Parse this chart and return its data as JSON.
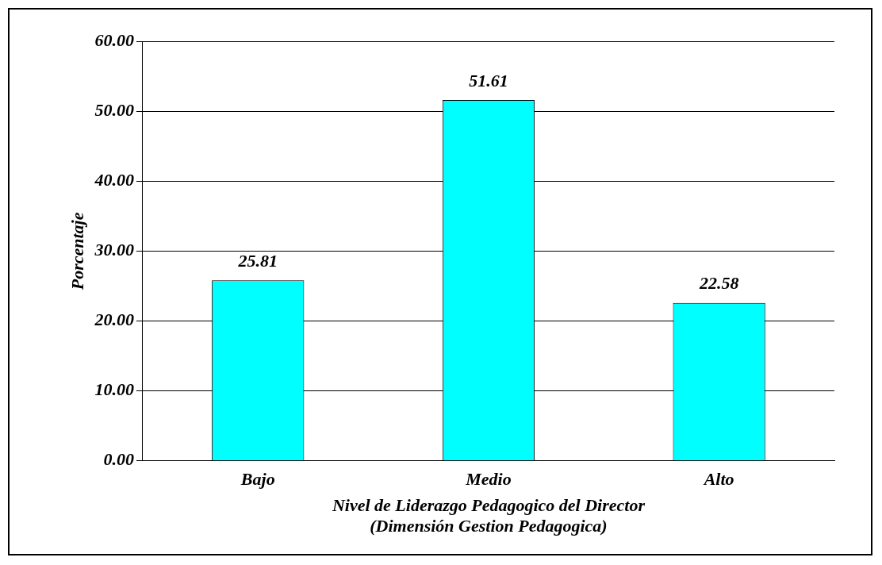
{
  "chart_data": {
    "type": "bar",
    "categories": [
      "Bajo",
      "Medio",
      "Alto"
    ],
    "values": [
      25.81,
      51.61,
      22.58
    ],
    "color": "#00ffff",
    "ylabel": "Porcentaje",
    "xlabel": "Nivel de Liderazgo Pedagogico del Director\n(Dimensión Gestion Pedagogica)",
    "ylim": [
      0,
      60
    ],
    "yticks": [
      {
        "value": 0,
        "label": "0.00"
      },
      {
        "value": 10,
        "label": "10.00"
      },
      {
        "value": 20,
        "label": "20.00"
      },
      {
        "value": 30,
        "label": "30.00"
      },
      {
        "value": 40,
        "label": "40.00"
      },
      {
        "value": 50,
        "label": "50.00"
      },
      {
        "value": 60,
        "label": "60.00"
      }
    ],
    "grid": "y",
    "data_labels": true,
    "legend": false
  }
}
